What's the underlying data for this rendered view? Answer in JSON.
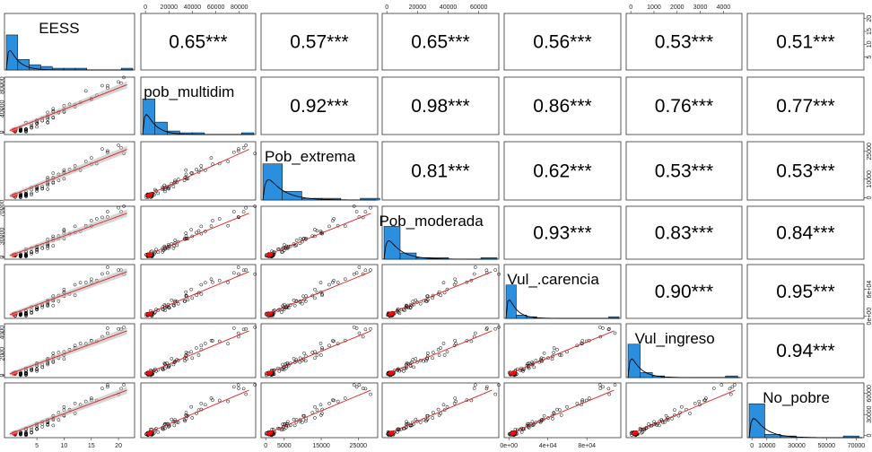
{
  "chart_data": {
    "type": "scatter-matrix",
    "variables": [
      "EESS",
      "pob_multidim",
      "Pob_extrema",
      "Pob_moderada",
      "Vul_.carencia",
      "Vul_ingreso",
      "No_pobre"
    ],
    "correlations": [
      [
        "",
        "0.65***",
        "0.57***",
        "0.65***",
        "0.56***",
        "0.53***",
        "0.51***"
      ],
      [
        "",
        "",
        "0.92***",
        "0.98***",
        "0.86***",
        "0.76***",
        "0.77***"
      ],
      [
        "",
        "",
        "",
        "0.81***",
        "0.62***",
        "0.53***",
        "0.53***"
      ],
      [
        "",
        "",
        "",
        "",
        "0.93***",
        "0.83***",
        "0.84***"
      ],
      [
        "",
        "",
        "",
        "",
        "",
        "0.90***",
        "0.95***"
      ],
      [
        "",
        "",
        "",
        "",
        "",
        "",
        "0.94***"
      ],
      [
        "",
        "",
        "",
        "",
        "",
        "",
        ""
      ]
    ],
    "ranges": [
      [
        0,
        22
      ],
      [
        0,
        90000
      ],
      [
        0,
        29000
      ],
      [
        0,
        70000
      ],
      [
        0,
        110000
      ],
      [
        0,
        4600
      ],
      [
        0,
        72000
      ]
    ],
    "axis_ticks": {
      "top": [
        {
          "col": 1,
          "ticks": [
            0,
            20000,
            40000,
            60000,
            80000
          ],
          "labels": [
            "0",
            "20000",
            "40000",
            "60000",
            "80000"
          ]
        },
        {
          "col": 3,
          "ticks": [
            0,
            20000,
            40000,
            60000
          ],
          "labels": [
            "0",
            "20000",
            "40000",
            "60000"
          ]
        },
        {
          "col": 5,
          "ticks": [
            0,
            1000,
            2000,
            3000,
            4000
          ],
          "labels": [
            "0",
            "1000",
            "2000",
            "3000",
            "4000"
          ]
        }
      ],
      "bottom": [
        {
          "col": 0,
          "ticks": [
            5,
            10,
            15,
            20
          ],
          "labels": [
            "5",
            "10",
            "15",
            "20"
          ]
        },
        {
          "col": 2,
          "ticks": [
            0,
            5000,
            15000,
            25000
          ],
          "labels": [
            "0",
            "5000",
            "15000",
            "25000"
          ]
        },
        {
          "col": 4,
          "ticks": [
            0,
            40000,
            80000
          ],
          "labels": [
            "0e+00",
            "4e+04",
            "8e+04"
          ]
        },
        {
          "col": 6,
          "ticks": [
            0,
            10000,
            30000,
            50000,
            70000
          ],
          "labels": [
            "0",
            "10000",
            "30000",
            "50000",
            "70000"
          ]
        }
      ],
      "left": [
        {
          "row": 1,
          "ticks": [
            0,
            40000,
            80000
          ],
          "labels": [
            "0",
            "40000",
            "80000"
          ]
        },
        {
          "row": 3,
          "ticks": [
            0,
            30000,
            70000
          ],
          "labels": [
            "0",
            "30000",
            "70000"
          ]
        },
        {
          "row": 5,
          "ticks": [
            0,
            2000,
            4000
          ],
          "labels": [
            "0",
            "2000",
            "4000"
          ]
        }
      ],
      "right": [
        {
          "row": 0,
          "ticks": [
            5,
            10,
            15,
            20
          ],
          "labels": [
            "5",
            "10",
            "15",
            "20"
          ]
        },
        {
          "row": 2,
          "ticks": [
            0,
            10000,
            25000
          ],
          "labels": [
            "0",
            "10000",
            "25000"
          ]
        },
        {
          "row": 4,
          "ticks": [
            0,
            60000
          ],
          "labels": [
            "0e+00",
            "6e+04"
          ]
        },
        {
          "row": 6,
          "ticks": [
            0,
            30000,
            60000
          ],
          "labels": [
            "0",
            "30000",
            "60000"
          ]
        }
      ]
    },
    "histograms": [
      {
        "bins": [
          0,
          2,
          4,
          6,
          8,
          10,
          12,
          14,
          16,
          18,
          20,
          22
        ],
        "counts": [
          20,
          6,
          3,
          2,
          1,
          1,
          1,
          0,
          0,
          0,
          1
        ]
      },
      {
        "bins": [
          0,
          10000,
          20000,
          30000,
          40000,
          50000,
          60000,
          70000,
          80000,
          90000
        ],
        "counts": [
          20,
          7,
          2,
          1,
          1,
          0,
          0,
          0,
          1
        ]
      },
      {
        "bins": [
          0,
          5000,
          10000,
          15000,
          20000,
          25000,
          30000
        ],
        "counts": [
          21,
          5,
          1,
          1,
          0,
          1
        ]
      },
      {
        "bins": [
          0,
          10000,
          20000,
          30000,
          40000,
          50000,
          60000,
          70000
        ],
        "counts": [
          21,
          4,
          1,
          1,
          0,
          0,
          1
        ]
      },
      {
        "bins": [
          0,
          10000,
          20000,
          30000,
          40000,
          50000,
          60000,
          70000,
          80000,
          90000,
          100000,
          110000
        ],
        "counts": [
          20,
          2,
          1,
          0,
          0,
          0,
          0,
          0,
          0,
          0,
          1
        ]
      },
      {
        "bins": [
          0,
          500,
          1000,
          1500,
          2000,
          2500,
          3000,
          3500,
          4000,
          4500
        ],
        "counts": [
          20,
          3,
          1,
          0,
          0,
          0,
          0,
          0,
          1
        ]
      },
      {
        "bins": [
          0,
          10000,
          20000,
          30000,
          40000,
          50000,
          60000,
          70000
        ],
        "counts": [
          20,
          2,
          1,
          0,
          0,
          0,
          1
        ]
      }
    ]
  },
  "colors": {
    "hist": "#2b8fe0",
    "density": "#000000",
    "fit": "#e02020",
    "band": "#bbbbbb",
    "centroid": "#ff0000"
  }
}
